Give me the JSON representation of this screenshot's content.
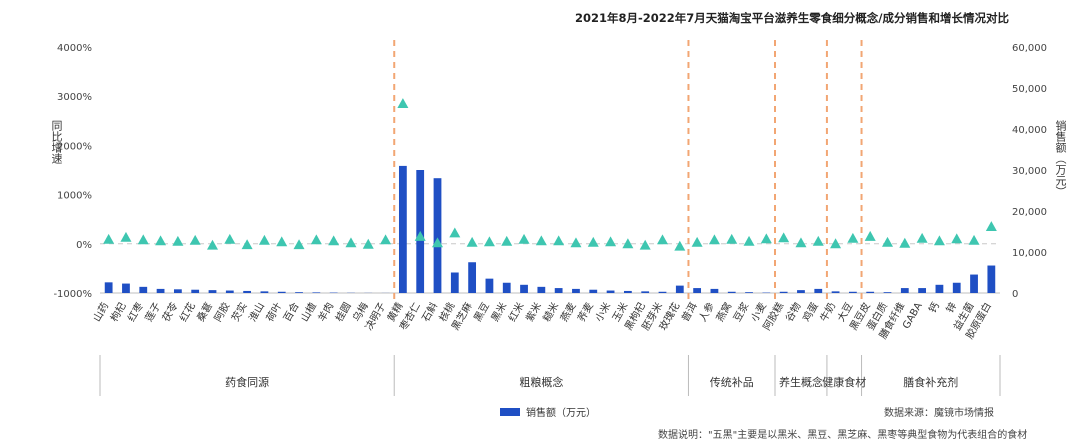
{
  "chart_data": {
    "type": "bar",
    "title": "2021年8月-2022年7月天猫淘宝平台滋养生零食细分概念/成分销售和增长情况对比",
    "ylabel_left": "同比增速",
    "ylabel_right": "销售额（万元）",
    "y_left_ticks": [
      "4000%",
      "3000%",
      "2000%",
      "1000%",
      "0%",
      "-1000%"
    ],
    "y_left_range": [
      -1000,
      4000
    ],
    "y_right_ticks": [
      "60,000",
      "50,000",
      "40,000",
      "30,000",
      "20,000",
      "10,000",
      "0"
    ],
    "y_right_range": [
      0,
      60000
    ],
    "legend": [
      {
        "name": "销售额（万元）",
        "color": "#1f4fc4"
      }
    ],
    "bar_color": "#1f4fc4",
    "marker_color": "#3ec6b0",
    "source": "数据来源：魔镜市场情报",
    "note": "数据说明：\"五黑\"主要是以黑米、黑豆、黑芝麻、黑枣等典型食物为代表组合的食材",
    "categories": [
      "山药",
      "枸杞",
      "红枣",
      "莲子",
      "茯苓",
      "红花",
      "桑葚",
      "阿胶",
      "芡实",
      "淮山",
      "荷叶",
      "百合",
      "山楂",
      "羊肉",
      "桂圆",
      "乌梅",
      "决明子",
      "黄精",
      "枣杏仁",
      "石斛",
      "核桃",
      "黑芝麻",
      "黑豆",
      "黑米",
      "红米",
      "紫米",
      "糙米",
      "燕麦",
      "荞麦",
      "小米",
      "玉米",
      "黑枸杞",
      "胚芽米",
      "玫瑰花",
      "普洱",
      "人参",
      "燕窝",
      "豆浆",
      "小麦",
      "阿胶糕",
      "谷物",
      "鸡蛋",
      "牛奶",
      "大豆",
      "黑豆皮",
      "蛋白质",
      "膳食纤维",
      "GABA",
      "钙",
      "锌",
      "益生菌",
      "胶原蛋白"
    ],
    "sales": [
      2600,
      2300,
      1500,
      1000,
      900,
      800,
      700,
      600,
      500,
      400,
      300,
      200,
      150,
      100,
      50,
      30,
      20,
      31000,
      30000,
      28000,
      5000,
      7500,
      3500,
      2500,
      2000,
      1500,
      1200,
      1000,
      800,
      600,
      500,
      400,
      300,
      1800,
      1200,
      1000,
      300,
      200,
      100,
      300,
      700,
      1000,
      400,
      300,
      300,
      200,
      1200,
      1200,
      2000,
      2500,
      4500,
      6700
    ],
    "growth": [
      90,
      130,
      80,
      60,
      50,
      70,
      -30,
      90,
      -20,
      70,
      40,
      -20,
      80,
      60,
      20,
      -10,
      80,
      2850,
      150,
      20,
      220,
      30,
      40,
      50,
      90,
      60,
      60,
      20,
      30,
      40,
      0,
      -30,
      80,
      -50,
      30,
      80,
      90,
      50,
      100,
      120,
      20,
      50,
      0,
      110,
      150,
      30,
      10,
      110,
      60,
      100,
      70,
      350
    ],
    "groups": [
      "药食同源",
      "粗粮概念",
      "传统补品",
      "养生概念",
      "健康食材",
      "膳食补充剂"
    ]
  }
}
